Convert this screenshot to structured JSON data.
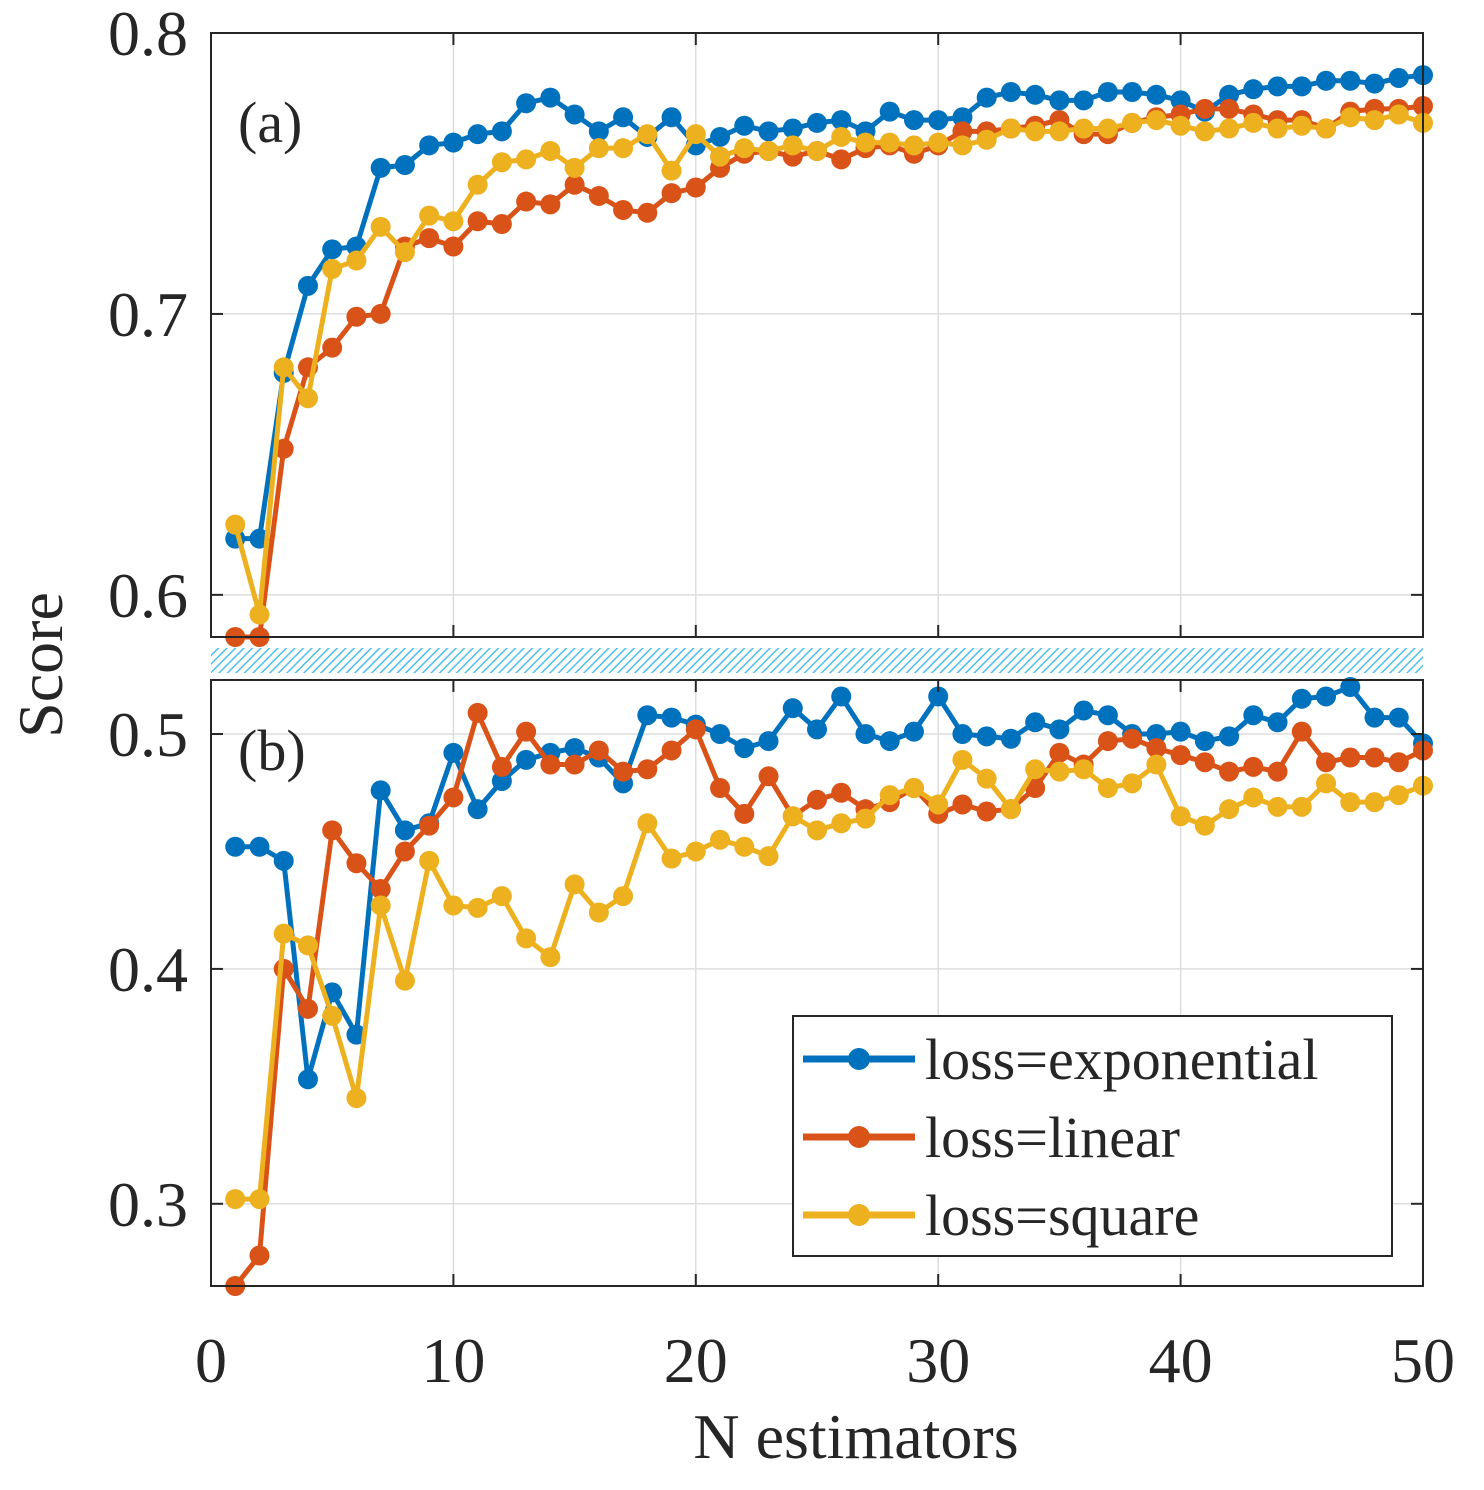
{
  "chart_data": {
    "type": "line",
    "ylabel": "Score",
    "xlabel": "N estimators",
    "xlim": [
      0,
      50
    ],
    "xticks": [
      0,
      10,
      20,
      30,
      40,
      50
    ],
    "xtick_labels": [
      "0",
      "10",
      "20",
      "30",
      "40",
      "50"
    ],
    "grid": true,
    "legend_position": "bottom-right of panel (b)",
    "colors": {
      "loss=exponential": "#0072BD",
      "loss=linear": "#D95319",
      "loss=square": "#EDB120",
      "break_band": "#4DBEEE"
    },
    "panels": [
      {
        "panel_label": "(a)",
        "ylim": [
          0.585,
          0.8
        ],
        "yticks": [
          0.6,
          0.7,
          0.8
        ],
        "ytick_labels": [
          "0.6",
          "0.7",
          "0.8"
        ],
        "x": [
          1,
          2,
          3,
          4,
          5,
          6,
          7,
          8,
          9,
          10,
          11,
          12,
          13,
          14,
          15,
          16,
          17,
          18,
          19,
          20,
          21,
          22,
          23,
          24,
          25,
          26,
          27,
          28,
          29,
          30,
          31,
          32,
          33,
          34,
          35,
          36,
          37,
          38,
          39,
          40,
          41,
          42,
          43,
          44,
          45,
          46,
          47,
          48,
          49,
          50
        ],
        "series": [
          {
            "name": "loss=exponential",
            "values": [
              0.62,
              0.62,
              0.679,
              0.71,
              0.723,
              0.724,
              0.752,
              0.753,
              0.76,
              0.761,
              0.764,
              0.765,
              0.775,
              0.777,
              0.771,
              0.765,
              0.77,
              0.763,
              0.77,
              0.76,
              0.763,
              0.767,
              0.765,
              0.766,
              0.768,
              0.769,
              0.765,
              0.772,
              0.769,
              0.769,
              0.77,
              0.777,
              0.779,
              0.778,
              0.776,
              0.776,
              0.779,
              0.779,
              0.778,
              0.776,
              0.772,
              0.778,
              0.78,
              0.781,
              0.781,
              0.783,
              0.783,
              0.782,
              0.784,
              0.785
            ]
          },
          {
            "name": "loss=linear",
            "values": [
              0.585,
              0.585,
              0.652,
              0.681,
              0.688,
              0.699,
              0.7,
              0.724,
              0.727,
              0.724,
              0.733,
              0.732,
              0.74,
              0.739,
              0.746,
              0.742,
              0.737,
              0.736,
              0.743,
              0.745,
              0.752,
              0.757,
              0.758,
              0.756,
              0.758,
              0.755,
              0.759,
              0.76,
              0.757,
              0.76,
              0.765,
              0.765,
              0.766,
              0.767,
              0.769,
              0.764,
              0.764,
              0.768,
              0.77,
              0.771,
              0.773,
              0.773,
              0.771,
              0.769,
              0.769,
              0.766,
              0.772,
              0.773,
              0.773,
              0.774
            ]
          },
          {
            "name": "loss=square",
            "values": [
              0.625,
              0.593,
              0.681,
              0.67,
              0.716,
              0.719,
              0.731,
              0.722,
              0.735,
              0.733,
              0.746,
              0.754,
              0.755,
              0.758,
              0.752,
              0.759,
              0.759,
              0.764,
              0.751,
              0.764,
              0.756,
              0.759,
              0.758,
              0.76,
              0.758,
              0.763,
              0.761,
              0.761,
              0.76,
              0.761,
              0.76,
              0.762,
              0.766,
              0.765,
              0.765,
              0.766,
              0.766,
              0.768,
              0.769,
              0.767,
              0.765,
              0.766,
              0.768,
              0.766,
              0.767,
              0.766,
              0.77,
              0.769,
              0.771,
              0.768
            ]
          }
        ]
      },
      {
        "panel_label": "(b)",
        "ylim": [
          0.265,
          0.523
        ],
        "yticks": [
          0.3,
          0.4,
          0.5
        ],
        "ytick_labels": [
          "0.3",
          "0.4",
          "0.5"
        ],
        "x": [
          1,
          2,
          3,
          4,
          5,
          6,
          7,
          8,
          9,
          10,
          11,
          12,
          13,
          14,
          15,
          16,
          17,
          18,
          19,
          20,
          21,
          22,
          23,
          24,
          25,
          26,
          27,
          28,
          29,
          30,
          31,
          32,
          33,
          34,
          35,
          36,
          37,
          38,
          39,
          40,
          41,
          42,
          43,
          44,
          45,
          46,
          47,
          48,
          49,
          50
        ],
        "series": [
          {
            "name": "loss=exponential",
            "values": [
              0.452,
              0.452,
              0.446,
              0.353,
              0.39,
              0.372,
              0.476,
              0.459,
              0.462,
              0.492,
              0.468,
              0.48,
              0.489,
              0.492,
              0.494,
              0.49,
              0.479,
              0.508,
              0.507,
              0.504,
              0.5,
              0.494,
              0.497,
              0.511,
              0.502,
              0.516,
              0.5,
              0.497,
              0.501,
              0.516,
              0.5,
              0.499,
              0.498,
              0.505,
              0.502,
              0.51,
              0.508,
              0.5,
              0.5,
              0.501,
              0.497,
              0.499,
              0.508,
              0.505,
              0.515,
              0.516,
              0.52,
              0.507,
              0.507,
              0.496
            ]
          },
          {
            "name": "loss=linear",
            "values": [
              0.265,
              0.278,
              0.4,
              0.383,
              0.459,
              0.445,
              0.434,
              0.45,
              0.461,
              0.473,
              0.509,
              0.486,
              0.501,
              0.487,
              0.487,
              0.493,
              0.484,
              0.485,
              0.493,
              0.502,
              0.477,
              0.466,
              0.482,
              0.465,
              0.472,
              0.475,
              0.468,
              0.471,
              0.477,
              0.466,
              0.47,
              0.467,
              0.468,
              0.477,
              0.492,
              0.487,
              0.497,
              0.498,
              0.494,
              0.491,
              0.488,
              0.484,
              0.486,
              0.484,
              0.501,
              0.488,
              0.49,
              0.49,
              0.488,
              0.493
            ]
          },
          {
            "name": "loss=square",
            "values": [
              0.302,
              0.302,
              0.415,
              0.41,
              0.38,
              0.345,
              0.427,
              0.395,
              0.446,
              0.427,
              0.426,
              0.431,
              0.413,
              0.405,
              0.436,
              0.424,
              0.431,
              0.462,
              0.447,
              0.45,
              0.455,
              0.452,
              0.448,
              0.465,
              0.459,
              0.462,
              0.464,
              0.474,
              0.477,
              0.47,
              0.489,
              0.481,
              0.468,
              0.485,
              0.484,
              0.485,
              0.477,
              0.479,
              0.487,
              0.465,
              0.461,
              0.468,
              0.473,
              0.469,
              0.469,
              0.479,
              0.471,
              0.471,
              0.474,
              0.478
            ]
          }
        ]
      }
    ]
  }
}
